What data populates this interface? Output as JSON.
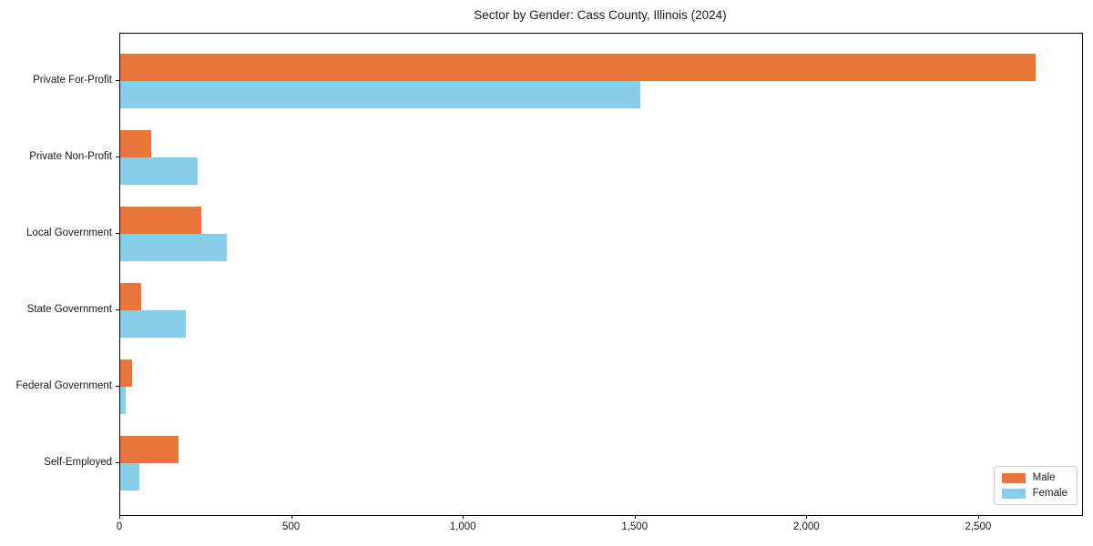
{
  "page": {
    "title": "Sector by Gender: Cass County, Illinois (2024)"
  },
  "chart_data": {
    "type": "bar",
    "orientation": "horizontal",
    "title": "Sector by Gender: Cass County, Illinois (2024)",
    "categories": [
      "Private For-Profit",
      "Private Non-Profit",
      "Local Government",
      "State Government",
      "Federal Government",
      "Self-Employed"
    ],
    "series": [
      {
        "name": "Male",
        "color": "#E8763C",
        "values": [
          2665,
          90,
          235,
          60,
          35,
          170
        ]
      },
      {
        "name": "Female",
        "color": "#87CEEB",
        "values": [
          1515,
          225,
          310,
          190,
          15,
          55
        ]
      }
    ],
    "xlabel": "",
    "ylabel": "",
    "xlim": [
      0,
      2800
    ],
    "xticks": [
      0,
      500,
      1000,
      1500,
      2000,
      2500
    ],
    "xtick_labels": [
      "0",
      "500",
      "1,000",
      "1,500",
      "2,000",
      "2,500"
    ],
    "grid": false,
    "background": "#ffffff",
    "spine_color": "#000000",
    "legend": {
      "position": "lower right",
      "entries": [
        "Male",
        "Female"
      ]
    }
  }
}
